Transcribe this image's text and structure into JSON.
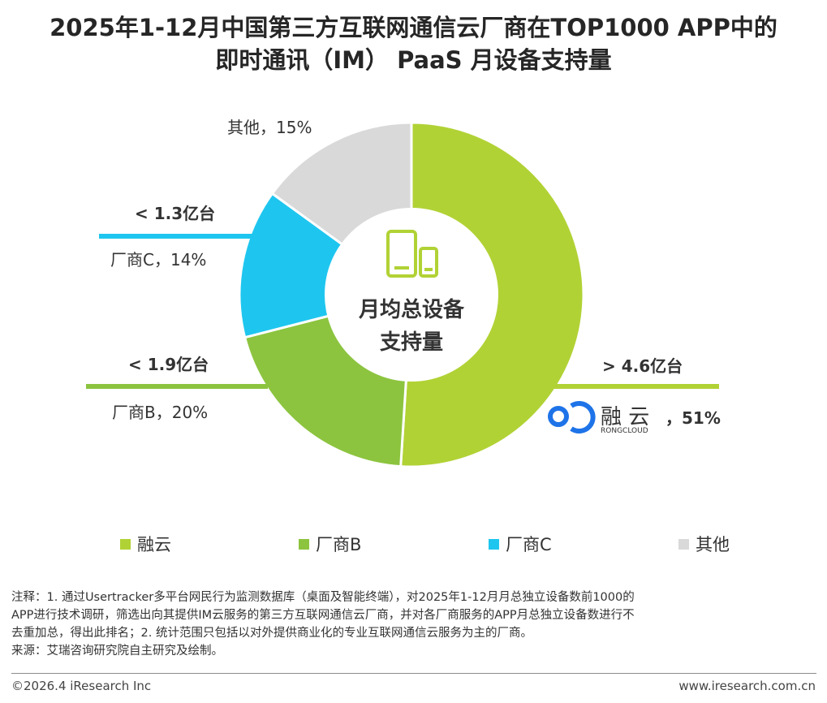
{
  "header": {
    "title_line1": "2025年1-12月中国第三方互联网通信云厂商在TOP1000 APP中的",
    "title_line2": "即时通讯（IM） PaaS 月设备支持量"
  },
  "chart_data": {
    "type": "pie",
    "style": "donut",
    "center_label_line1": "月均总设备",
    "center_label_line2": "支持量",
    "slices": [
      {
        "name": "融云",
        "value": 51,
        "color": "#b1d235",
        "label": "，51%",
        "callout": "> 4.6亿台",
        "logo_text": "融 云",
        "logo_sub": "RONGCLOUD"
      },
      {
        "name": "厂商B",
        "value": 20,
        "color": "#8cc43f",
        "label": "厂商B，20%",
        "callout": "< 1.9亿台"
      },
      {
        "name": "厂商C",
        "value": 14,
        "color": "#1ec6ef",
        "label": "厂商C，14%",
        "callout": "< 1.3亿台"
      },
      {
        "name": "其他",
        "value": 15,
        "color": "#d9d9d9",
        "label": "其他，15%"
      }
    ],
    "legend_placement": "bottom"
  },
  "notes": {
    "line1": "注释：1. 通过Usertracker多平台网民行为监测数据库（桌面及智能终端），对2025年1-12月月总独立设备数前1000的",
    "line2": "APP进行技术调研，筛选出向其提供IM云服务的第三方互联网通信云厂商，并对各厂商服务的APP月总独立设备数进行不",
    "line3": "去重加总，得出此排名；2. 统计范围只包括以对外提供商业化的专业互联网通信云服务为主的厂商。",
    "source": "来源：艾瑞咨询研究院自主研究及绘制。"
  },
  "footer": {
    "copyright": "©2026.4 iResearch Inc",
    "website": "www.iresearch.com.cn"
  }
}
